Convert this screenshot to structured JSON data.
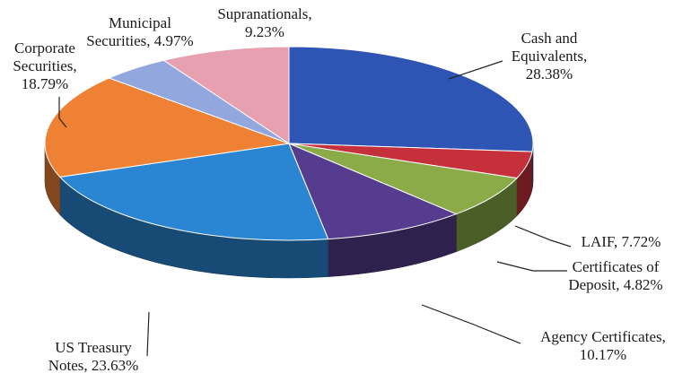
{
  "chart_data": {
    "type": "pie",
    "style": "3d-tilted",
    "slices": [
      {
        "name": "Cash and Equivalents",
        "value": 28.38,
        "color": "#2f55b4",
        "label_lines": [
          "Cash and",
          "Equivalents,",
          "28.38%"
        ]
      },
      {
        "name": "Certificates of Deposit",
        "value": 4.82,
        "color": "#c6303a",
        "label_lines": [
          "Certificates of",
          "Deposit, 4.82%"
        ]
      },
      {
        "name": "LAIF",
        "value": 7.72,
        "color": "#8aab48",
        "label_lines": [
          "LAIF, 7.72%"
        ]
      },
      {
        "name": "Agency Certificates",
        "value": 10.17,
        "color": "#553c8e",
        "label_lines": [
          "Agency Certificates,",
          "10.17%"
        ]
      },
      {
        "name": "US Treasury Notes",
        "value": 23.63,
        "color": "#2a86d2",
        "label_lines": [
          "US Treasury",
          "Notes, 23.63%"
        ]
      },
      {
        "name": "Corporate Securities",
        "value": 18.79,
        "color": "#ef8135",
        "label_lines": [
          "Corporate",
          "Securities,",
          "18.79%"
        ]
      },
      {
        "name": "Municipal Securities",
        "value": 4.97,
        "color": "#93a7df",
        "label_lines": [
          "Municipal",
          "Securities, 4.97%"
        ]
      },
      {
        "name": "Supranationals",
        "value": 9.23,
        "color": "#e6a0b0",
        "label_lines": [
          "Supranationals,",
          "9.23%"
        ]
      }
    ]
  }
}
